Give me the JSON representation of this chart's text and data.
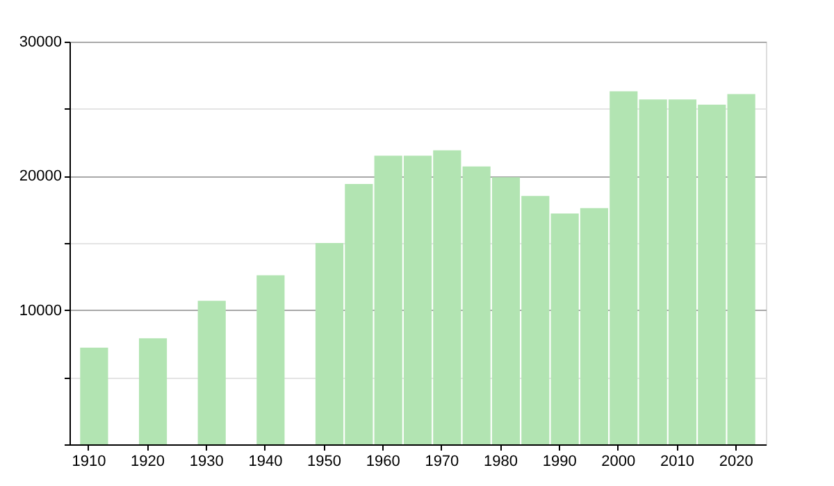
{
  "chart_data": {
    "type": "bar",
    "x": [
      1911,
      1921,
      1931,
      1941,
      1951,
      1956,
      1961,
      1966,
      1971,
      1976,
      1981,
      1986,
      1991,
      1996,
      2001,
      2006,
      2011,
      2016,
      2021
    ],
    "values": [
      7200,
      7900,
      10700,
      12600,
      15000,
      19400,
      21500,
      21500,
      21900,
      20700,
      19900,
      18500,
      17200,
      17600,
      26300,
      25700,
      25700,
      25300,
      26100
    ],
    "color": "#b2e4b2",
    "xlim": [
      1908,
      2024
    ],
    "xticks": [
      1910,
      1920,
      1930,
      1940,
      1950,
      1960,
      1970,
      1980,
      1990,
      2000,
      2010,
      2020
    ],
    "ylim": [
      0,
      30000
    ],
    "yticks": [
      {
        "value": 0,
        "label": null
      },
      {
        "value": 5000,
        "label": null
      },
      10000,
      {
        "value": 15000,
        "label": null
      },
      20000,
      {
        "value": 25000,
        "label": null
      },
      30000
    ],
    "grid": "y"
  }
}
